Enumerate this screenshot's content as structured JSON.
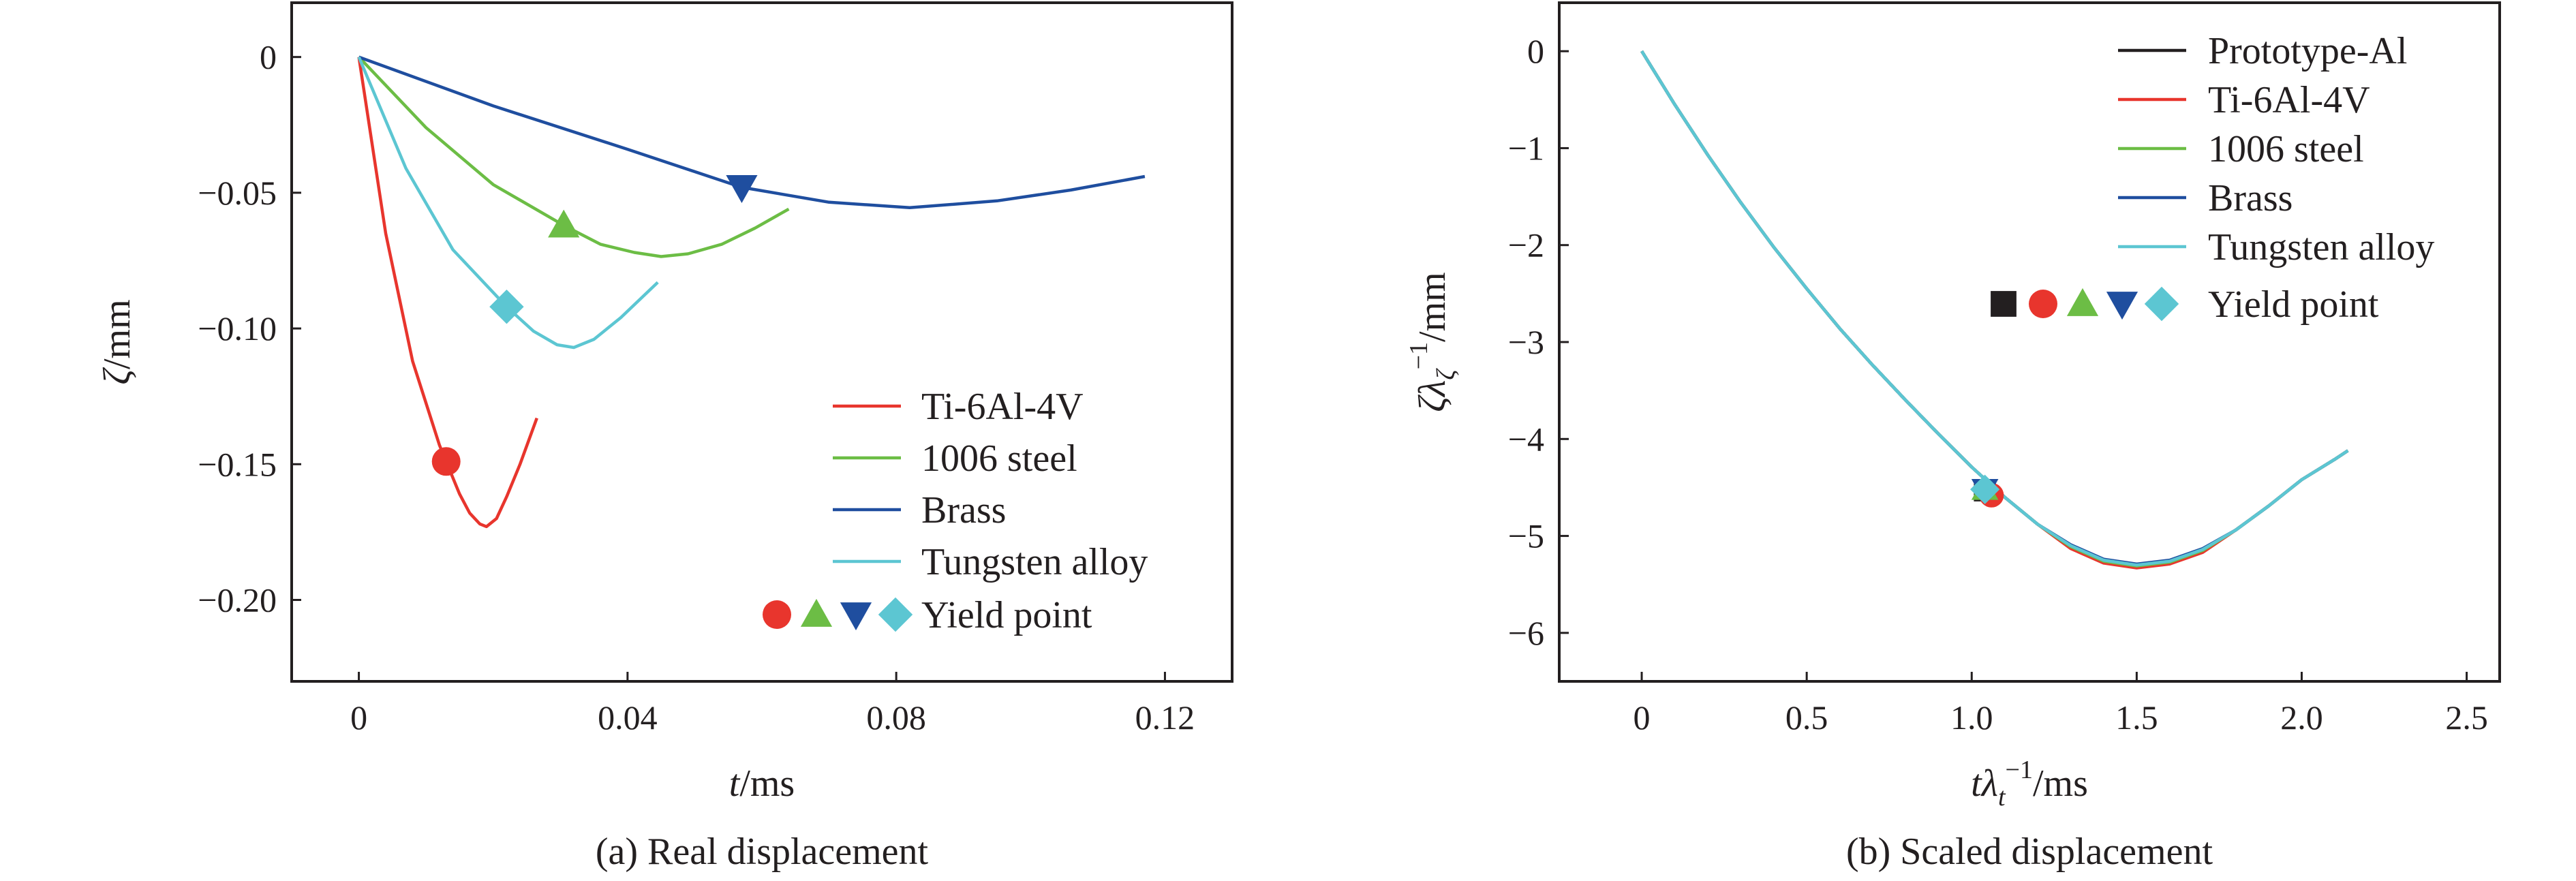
{
  "chart_data": [
    {
      "type": "line",
      "caption": "(a) Real displacement",
      "xlabel": {
        "var": "t",
        "unit": "/ms"
      },
      "ylabel": {
        "var": "ζ",
        "unit": "/mm"
      },
      "xlim": [
        -0.01,
        0.13
      ],
      "ylim": [
        -0.23,
        0.02
      ],
      "xticks": [
        0,
        0.04,
        0.08,
        0.12
      ],
      "xtick_labels": [
        "0",
        "0.04",
        "0.08",
        "0.12"
      ],
      "yticks": [
        0,
        -0.05,
        -0.1,
        -0.15,
        -0.2
      ],
      "ytick_labels": [
        "0",
        "−0.05",
        "−0.10",
        "−0.15",
        "−0.20"
      ],
      "legend_position": "lower-right",
      "series": [
        {
          "name": "Ti-6Al-4V",
          "color": "#e8352d",
          "marker": "circle",
          "x": [
            0,
            0.004,
            0.008,
            0.012,
            0.013,
            0.015,
            0.0165,
            0.018,
            0.019,
            0.0205,
            0.022,
            0.024,
            0.0265
          ],
          "y": [
            0,
            -0.065,
            -0.112,
            -0.143,
            -0.149,
            -0.161,
            -0.168,
            -0.172,
            -0.173,
            -0.17,
            -0.162,
            -0.15,
            -0.133
          ],
          "yield": [
            0.013,
            -0.149
          ]
        },
        {
          "name": "1006 steel",
          "color": "#6cbd45",
          "marker": "triangle-up",
          "x": [
            0,
            0.01,
            0.02,
            0.0305,
            0.036,
            0.041,
            0.045,
            0.049,
            0.054,
            0.059,
            0.064
          ],
          "y": [
            0,
            -0.026,
            -0.047,
            -0.062,
            -0.069,
            -0.072,
            -0.0735,
            -0.0725,
            -0.069,
            -0.063,
            -0.056
          ],
          "yield": [
            0.0305,
            -0.062
          ]
        },
        {
          "name": "Brass",
          "color": "#1f4e9f",
          "marker": "triangle-down",
          "x": [
            0,
            0.02,
            0.04,
            0.057,
            0.07,
            0.082,
            0.095,
            0.106,
            0.117
          ],
          "y": [
            0,
            -0.018,
            -0.034,
            -0.048,
            -0.0535,
            -0.0555,
            -0.053,
            -0.049,
            -0.044
          ],
          "yield": [
            0.057,
            -0.048
          ]
        },
        {
          "name": "Tungsten alloy",
          "color": "#5cc6d2",
          "marker": "diamond",
          "x": [
            0,
            0.007,
            0.014,
            0.022,
            0.026,
            0.0295,
            0.032,
            0.035,
            0.039,
            0.0445
          ],
          "y": [
            0,
            -0.041,
            -0.071,
            -0.092,
            -0.101,
            -0.106,
            -0.107,
            -0.104,
            -0.096,
            -0.083
          ],
          "yield": [
            0.022,
            -0.092
          ]
        }
      ],
      "legend_yield_label": "Yield point"
    },
    {
      "type": "line",
      "caption": "(b) Scaled displacement",
      "xlabel": {
        "var1": "t",
        "var2": "λ",
        "sub": "t",
        "sup": "−1",
        "unit": "/ms"
      },
      "ylabel": {
        "var1": "ζ",
        "var2": "λ",
        "sub": "ζ",
        "sup": "−1",
        "unit": "/mm"
      },
      "xlim": [
        -0.25,
        2.6
      ],
      "ylim": [
        -6.5,
        0.5
      ],
      "xticks": [
        0,
        0.5,
        1.0,
        1.5,
        2.0,
        2.5
      ],
      "xtick_labels": [
        "0",
        "0.5",
        "1.0",
        "1.5",
        "2.0",
        "2.5"
      ],
      "yticks": [
        0,
        -1,
        -2,
        -3,
        -4,
        -5,
        -6
      ],
      "ytick_labels": [
        "0",
        "−1",
        "−2",
        "−3",
        "−4",
        "−5",
        "−6"
      ],
      "legend_position": "top-right",
      "series": [
        {
          "name": "Prototype-Al",
          "color": "#231f20",
          "marker": "square",
          "yield": [
            1.04,
            -4.53
          ]
        },
        {
          "name": "Ti-6Al-4V",
          "color": "#e8352d",
          "marker": "circle",
          "yield": [
            1.06,
            -4.58
          ]
        },
        {
          "name": "1006 steel",
          "color": "#6cbd45",
          "marker": "triangle-up",
          "yield": [
            1.04,
            -4.52
          ]
        },
        {
          "name": "Brass",
          "color": "#1f4e9f",
          "marker": "triangle-down",
          "yield": [
            1.04,
            -4.52
          ]
        },
        {
          "name": "Tungsten alloy",
          "color": "#5cc6d2",
          "marker": "diamond",
          "yield": [
            1.04,
            -4.52
          ]
        }
      ],
      "curve_x": [
        0,
        0.1,
        0.2,
        0.3,
        0.4,
        0.5,
        0.6,
        0.7,
        0.8,
        0.9,
        1.0,
        1.1,
        1.2,
        1.3,
        1.4,
        1.5,
        1.6,
        1.7,
        1.8,
        1.9,
        2.0,
        2.1,
        2.14
      ],
      "curve_y": [
        0,
        -0.55,
        -1.07,
        -1.56,
        -2.02,
        -2.45,
        -2.86,
        -3.24,
        -3.6,
        -3.95,
        -4.29,
        -4.6,
        -4.88,
        -5.1,
        -5.25,
        -5.3,
        -5.26,
        -5.14,
        -4.94,
        -4.69,
        -4.42,
        -4.21,
        -4.12
      ],
      "legend_yield_label": "Yield point"
    }
  ]
}
